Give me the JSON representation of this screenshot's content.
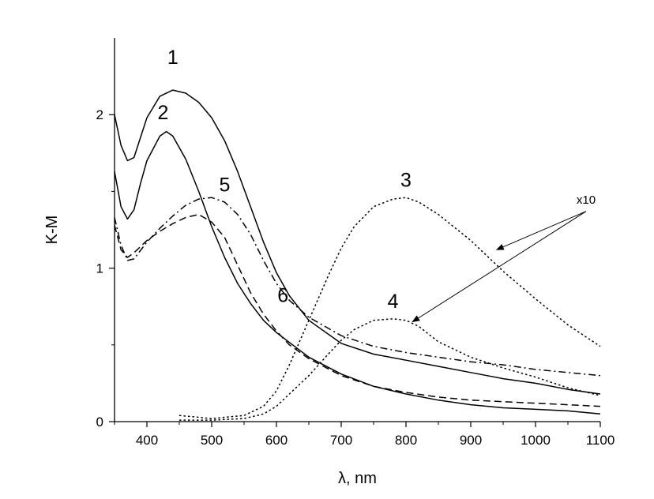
{
  "chart_data": {
    "type": "line",
    "xlabel": "λ, nm",
    "ylabel": "K-M",
    "xlim": [
      350,
      1100
    ],
    "ylim": [
      0,
      2.5
    ],
    "x_ticks": [
      400,
      500,
      600,
      700,
      800,
      900,
      1000,
      1100
    ],
    "y_ticks": [
      0,
      1,
      2
    ],
    "x_tick_labels": [
      "400",
      "500",
      "600",
      "700",
      "800",
      "900",
      "1000",
      "1100"
    ],
    "y_tick_labels": [
      "0",
      "1",
      "2"
    ],
    "grid": false,
    "legend": "none",
    "series": [
      {
        "name": "1",
        "style": "solid",
        "x": [
          350,
          360,
          370,
          380,
          390,
          400,
          420,
          440,
          460,
          480,
          500,
          520,
          540,
          560,
          580,
          600,
          620,
          650,
          700,
          750,
          800,
          850,
          900,
          950,
          1000,
          1050,
          1100
        ],
        "y": [
          2.0,
          1.8,
          1.7,
          1.72,
          1.85,
          1.98,
          2.12,
          2.16,
          2.14,
          2.08,
          1.98,
          1.83,
          1.63,
          1.4,
          1.17,
          0.97,
          0.82,
          0.66,
          0.51,
          0.44,
          0.4,
          0.36,
          0.32,
          0.28,
          0.25,
          0.21,
          0.18
        ]
      },
      {
        "name": "2",
        "style": "solid",
        "x": [
          350,
          360,
          370,
          380,
          390,
          400,
          420,
          430,
          440,
          460,
          480,
          500,
          520,
          540,
          560,
          580,
          600,
          650,
          700,
          750,
          800,
          850,
          900,
          950,
          1000,
          1050,
          1100
        ],
        "y": [
          1.63,
          1.4,
          1.32,
          1.38,
          1.55,
          1.7,
          1.86,
          1.89,
          1.86,
          1.71,
          1.5,
          1.27,
          1.07,
          0.9,
          0.77,
          0.66,
          0.58,
          0.42,
          0.31,
          0.23,
          0.18,
          0.14,
          0.11,
          0.09,
          0.08,
          0.07,
          0.05
        ]
      },
      {
        "name": "3",
        "style": "dotted",
        "x": [
          450,
          500,
          550,
          580,
          600,
          620,
          650,
          680,
          700,
          720,
          750,
          780,
          800,
          820,
          850,
          900,
          950,
          1000,
          1050,
          1100
        ],
        "y": [
          0.04,
          0.02,
          0.04,
          0.1,
          0.2,
          0.37,
          0.66,
          0.95,
          1.13,
          1.27,
          1.4,
          1.45,
          1.46,
          1.43,
          1.35,
          1.18,
          0.98,
          0.8,
          0.63,
          0.49
        ]
      },
      {
        "name": "4",
        "style": "dotted",
        "x": [
          450,
          500,
          550,
          580,
          600,
          620,
          650,
          680,
          700,
          720,
          750,
          780,
          800,
          820,
          850,
          900,
          950,
          1000,
          1050,
          1100
        ],
        "y": [
          0.01,
          0.01,
          0.02,
          0.05,
          0.1,
          0.18,
          0.3,
          0.44,
          0.53,
          0.6,
          0.66,
          0.67,
          0.66,
          0.62,
          0.52,
          0.42,
          0.35,
          0.29,
          0.22,
          0.17
        ]
      },
      {
        "name": "5",
        "style": "dashdot",
        "x": [
          350,
          360,
          370,
          380,
          400,
          420,
          440,
          460,
          480,
          500,
          520,
          540,
          560,
          580,
          600,
          620,
          650,
          700,
          750,
          800,
          850,
          900,
          950,
          1000,
          1050,
          1100
        ],
        "y": [
          1.33,
          1.15,
          1.05,
          1.06,
          1.17,
          1.26,
          1.34,
          1.41,
          1.45,
          1.46,
          1.43,
          1.35,
          1.22,
          1.05,
          0.9,
          0.79,
          0.68,
          0.56,
          0.49,
          0.45,
          0.42,
          0.39,
          0.37,
          0.34,
          0.32,
          0.3
        ]
      },
      {
        "name": "6",
        "style": "dashed",
        "x": [
          350,
          360,
          370,
          380,
          400,
          420,
          440,
          460,
          480,
          500,
          520,
          540,
          560,
          580,
          600,
          620,
          650,
          700,
          750,
          800,
          850,
          900,
          950,
          1000,
          1050,
          1100
        ],
        "y": [
          1.28,
          1.12,
          1.07,
          1.1,
          1.18,
          1.24,
          1.29,
          1.33,
          1.35,
          1.3,
          1.2,
          1.02,
          0.84,
          0.7,
          0.59,
          0.5,
          0.41,
          0.3,
          0.23,
          0.19,
          0.16,
          0.14,
          0.13,
          0.12,
          0.11,
          0.1
        ]
      }
    ],
    "curve_labels": [
      {
        "text": "1",
        "x": 440,
        "y": 2.33
      },
      {
        "text": "2",
        "x": 425,
        "y": 1.97
      },
      {
        "text": "5",
        "x": 520,
        "y": 1.5
      },
      {
        "text": "6",
        "x": 610,
        "y": 0.78
      },
      {
        "text": "3",
        "x": 800,
        "y": 1.53
      },
      {
        "text": "4",
        "x": 780,
        "y": 0.74
      }
    ],
    "annotation": {
      "text": "x10",
      "x": 1078,
      "y": 1.42,
      "arrow_from": {
        "x": 1078,
        "y": 1.37
      },
      "arrow_targets": [
        {
          "x": 940,
          "y": 1.12
        },
        {
          "x": 810,
          "y": 0.65
        }
      ]
    }
  }
}
